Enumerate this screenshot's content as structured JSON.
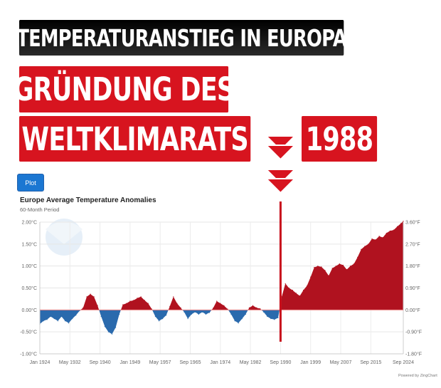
{
  "banners": {
    "headline": "TEMPERATURANSTIEG IN EUROPA",
    "line1": "GRÜNDUNG DES",
    "line2": "WELTKLIMARATS",
    "year": "1988"
  },
  "plot_button": "Plot",
  "credit": "Powered by ZingChart",
  "colors": {
    "positive": "#b0121f",
    "negative": "#2a6aad",
    "marker_line": "#c8101c",
    "banner_red": "#d7141f"
  },
  "chart_data": {
    "type": "area",
    "title": "Europe Average Temperature Anomalies",
    "subtitle": "60-Month Period",
    "xlim": [
      1924.0,
      2024.67
    ],
    "ylim": [
      -1.0,
      2.0
    ],
    "grid": true,
    "x_tick_labels": [
      "Jan 1924",
      "May 1932",
      "Sep 1940",
      "Jan 1949",
      "May 1957",
      "Sep 1965",
      "Jan 1974",
      "May 1982",
      "Sep 1990",
      "Jan 1999",
      "May 2007",
      "Sep 2015",
      "Sep 2024"
    ],
    "x_tick_values": [
      1924.0,
      1932.33,
      1940.67,
      1949.0,
      1957.33,
      1965.67,
      1974.0,
      1982.33,
      1990.67,
      1999.0,
      2007.33,
      2015.67,
      2024.67
    ],
    "y_ticks_left": [
      "-1.00°C",
      "-0.50°C",
      "0.00°C",
      "0.50°C",
      "1.00°C",
      "1.50°C",
      "2.00°C"
    ],
    "y_tick_values": [
      -1.0,
      -0.5,
      0,
      0.5,
      1.0,
      1.5,
      2.0
    ],
    "y_ticks_right": [
      "-1.80°F",
      "-0.90°F",
      "0.00°F",
      "0.90°F",
      "1.80°F",
      "2.70°F",
      "3.60°F"
    ],
    "marker_x": 1990.67,
    "x": [
      1924,
      1925,
      1926,
      1927,
      1928,
      1929,
      1930,
      1931,
      1932,
      1933,
      1934,
      1935,
      1936,
      1937,
      1938,
      1939,
      1940,
      1941,
      1942,
      1943,
      1944,
      1945,
      1946,
      1947,
      1948,
      1949,
      1950,
      1951,
      1952,
      1953,
      1954,
      1955,
      1956,
      1957,
      1958,
      1959,
      1960,
      1961,
      1962,
      1963,
      1964,
      1965,
      1966,
      1967,
      1968,
      1969,
      1970,
      1971,
      1972,
      1973,
      1974,
      1975,
      1976,
      1977,
      1978,
      1979,
      1980,
      1981,
      1982,
      1983,
      1984,
      1985,
      1986,
      1987,
      1988,
      1989,
      1990,
      1990.7,
      1991,
      1992,
      1993,
      1994,
      1995,
      1996,
      1997,
      1998,
      1999,
      2000,
      2001,
      2002,
      2003,
      2004,
      2005,
      2006,
      2007,
      2008,
      2009,
      2010,
      2011,
      2012,
      2013,
      2014,
      2015,
      2016,
      2017,
      2018,
      2019,
      2020,
      2021,
      2022,
      2023,
      2024,
      2024.67
    ],
    "values": [
      -0.32,
      -0.25,
      -0.22,
      -0.15,
      -0.2,
      -0.25,
      -0.15,
      -0.25,
      -0.3,
      -0.2,
      -0.12,
      -0.02,
      0.05,
      0.3,
      0.36,
      0.3,
      0.1,
      -0.15,
      -0.38,
      -0.5,
      -0.55,
      -0.4,
      -0.1,
      0.12,
      0.15,
      0.2,
      0.22,
      0.27,
      0.3,
      0.22,
      0.15,
      0.02,
      -0.15,
      -0.25,
      -0.2,
      -0.12,
      0.08,
      0.3,
      0.15,
      0.05,
      -0.05,
      -0.2,
      -0.1,
      -0.05,
      -0.1,
      -0.05,
      -0.1,
      -0.06,
      0.04,
      0.2,
      0.15,
      0.1,
      0.02,
      -0.1,
      -0.25,
      -0.3,
      -0.2,
      -0.1,
      0.05,
      0.1,
      0.05,
      0.03,
      -0.05,
      -0.15,
      -0.2,
      -0.22,
      -0.18,
      0.15,
      0.3,
      0.6,
      0.5,
      0.45,
      0.38,
      0.32,
      0.45,
      0.55,
      0.75,
      0.97,
      1.0,
      0.98,
      0.9,
      0.78,
      0.95,
      1.0,
      1.05,
      1.02,
      0.92,
      1.0,
      1.05,
      1.2,
      1.38,
      1.45,
      1.5,
      1.62,
      1.6,
      1.68,
      1.65,
      1.75,
      1.8,
      1.82,
      1.9,
      1.97,
      2.02
    ]
  }
}
